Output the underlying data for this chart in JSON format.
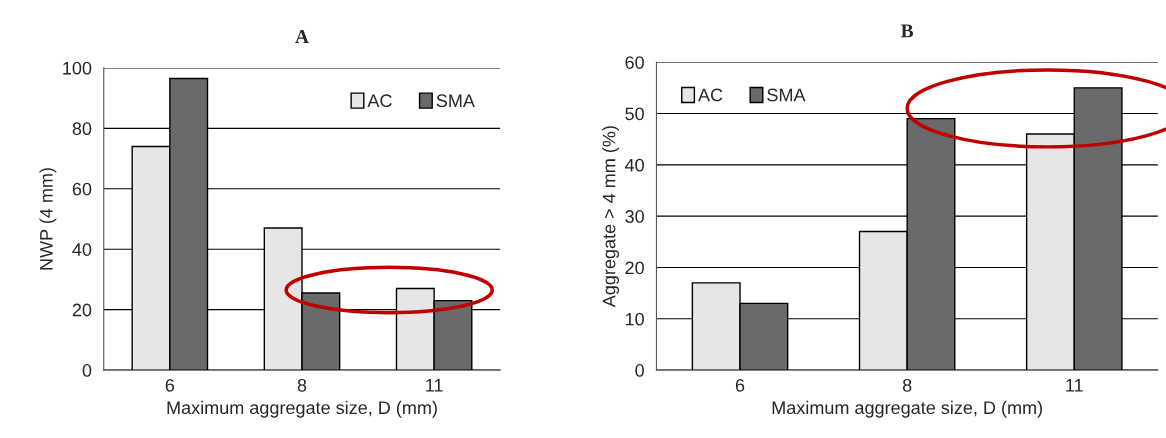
{
  "chart_data": [
    {
      "type": "bar",
      "title": "A",
      "xlabel": "Maximum aggregate size, D (mm)",
      "ylabel": "NWP (4 mm)",
      "categories": [
        "6",
        "8",
        "11"
      ],
      "series": [
        {
          "name": "AC",
          "color": "#e6e6e6",
          "values": [
            74,
            47,
            27
          ]
        },
        {
          "name": "SMA",
          "color": "#6a6a6a",
          "values": [
            96.5,
            25.5,
            23
          ]
        }
      ],
      "ylim": [
        0,
        100
      ],
      "yticks": [
        0,
        20,
        40,
        60,
        80,
        100
      ],
      "grid": "y",
      "legend": "top right"
    },
    {
      "type": "bar",
      "title": "B",
      "xlabel": "Maximum aggregate size, D (mm)",
      "ylabel": "Aggregate > 4 mm (%)",
      "categories": [
        "6",
        "8",
        "11"
      ],
      "series": [
        {
          "name": "AC",
          "color": "#e6e6e6",
          "values": [
            17,
            27,
            46
          ]
        },
        {
          "name": "SMA",
          "color": "#6a6a6a",
          "values": [
            13,
            49,
            55
          ]
        }
      ],
      "ylim": [
        0,
        60
      ],
      "yticks": [
        0,
        10,
        20,
        30,
        40,
        50,
        60
      ],
      "grid": "y",
      "legend": "top left"
    }
  ]
}
